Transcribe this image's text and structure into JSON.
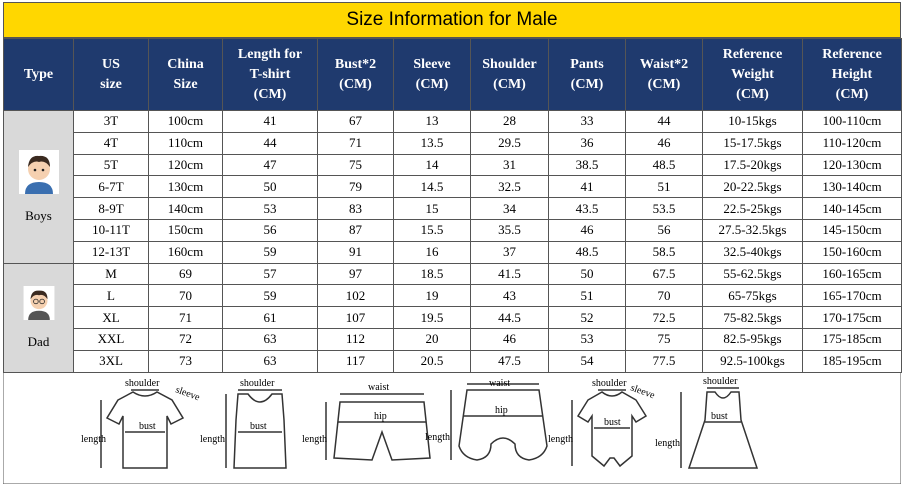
{
  "title": "Size Information for Male",
  "table": {
    "headers": [
      [
        "Type"
      ],
      [
        "US",
        "size"
      ],
      [
        "China",
        "Size"
      ],
      [
        "Length for",
        "T-shirt",
        "(CM)"
      ],
      [
        "Bust*2",
        "(CM)"
      ],
      [
        "Sleeve",
        "(CM)"
      ],
      [
        "Shoulder",
        "(CM)"
      ],
      [
        "Pants",
        "(CM)"
      ],
      [
        "Waist*2",
        "(CM)"
      ],
      [
        "Reference",
        "Weight",
        "(CM)"
      ],
      [
        "Reference",
        "Height",
        "(CM)"
      ]
    ],
    "groups": [
      {
        "label": "Boys",
        "rows": [
          [
            "3T",
            "100cm",
            41,
            67,
            13,
            28,
            33,
            44,
            "10-15kgs",
            "100-110cm"
          ],
          [
            "4T",
            "110cm",
            44,
            71,
            13.5,
            29.5,
            36,
            46,
            "15-17.5kgs",
            "110-120cm"
          ],
          [
            "5T",
            "120cm",
            47,
            75,
            14,
            31,
            38.5,
            48.5,
            "17.5-20kgs",
            "120-130cm"
          ],
          [
            "6-7T",
            "130cm",
            50,
            79,
            14.5,
            32.5,
            41,
            51,
            "20-22.5kgs",
            "130-140cm"
          ],
          [
            "8-9T",
            "140cm",
            53,
            83,
            15,
            34,
            43.5,
            53.5,
            "22.5-25kgs",
            "140-145cm"
          ],
          [
            "10-11T",
            "150cm",
            56,
            87,
            15.5,
            35.5,
            46,
            56,
            "27.5-32.5kgs",
            "145-150cm"
          ],
          [
            "12-13T",
            "160cm",
            59,
            91,
            16,
            37,
            48.5,
            58.5,
            "32.5-40kgs",
            "150-160cm"
          ]
        ]
      },
      {
        "label": "Dad",
        "rows": [
          [
            "M",
            69,
            57,
            97,
            18.5,
            41.5,
            50,
            67.5,
            "55-62.5kgs",
            "160-165cm"
          ],
          [
            "L",
            70,
            59,
            102,
            19,
            43,
            51,
            70,
            "65-75kgs",
            "165-170cm"
          ],
          [
            "XL",
            71,
            61,
            107,
            19.5,
            44.5,
            52,
            72.5,
            "75-82.5kgs",
            "170-175cm"
          ],
          [
            "XXL",
            72,
            63,
            112,
            20,
            46,
            53,
            75,
            "82.5-95kgs",
            "175-185cm"
          ],
          [
            "3XL",
            73,
            63,
            117,
            20.5,
            47.5,
            54,
            77.5,
            "92.5-100kgs",
            "185-195cm"
          ]
        ]
      }
    ]
  },
  "diagrams": [
    [
      "shoulder",
      "sleeve",
      "bust",
      "length"
    ],
    [
      "shoulder",
      "bust",
      "length"
    ],
    [
      "waist",
      "hip",
      "length"
    ],
    [
      "waist",
      "hip",
      "length"
    ],
    [
      "shoulder",
      "sleeve",
      "bust",
      "length"
    ],
    [
      "shoulder",
      "bust",
      "length"
    ]
  ]
}
